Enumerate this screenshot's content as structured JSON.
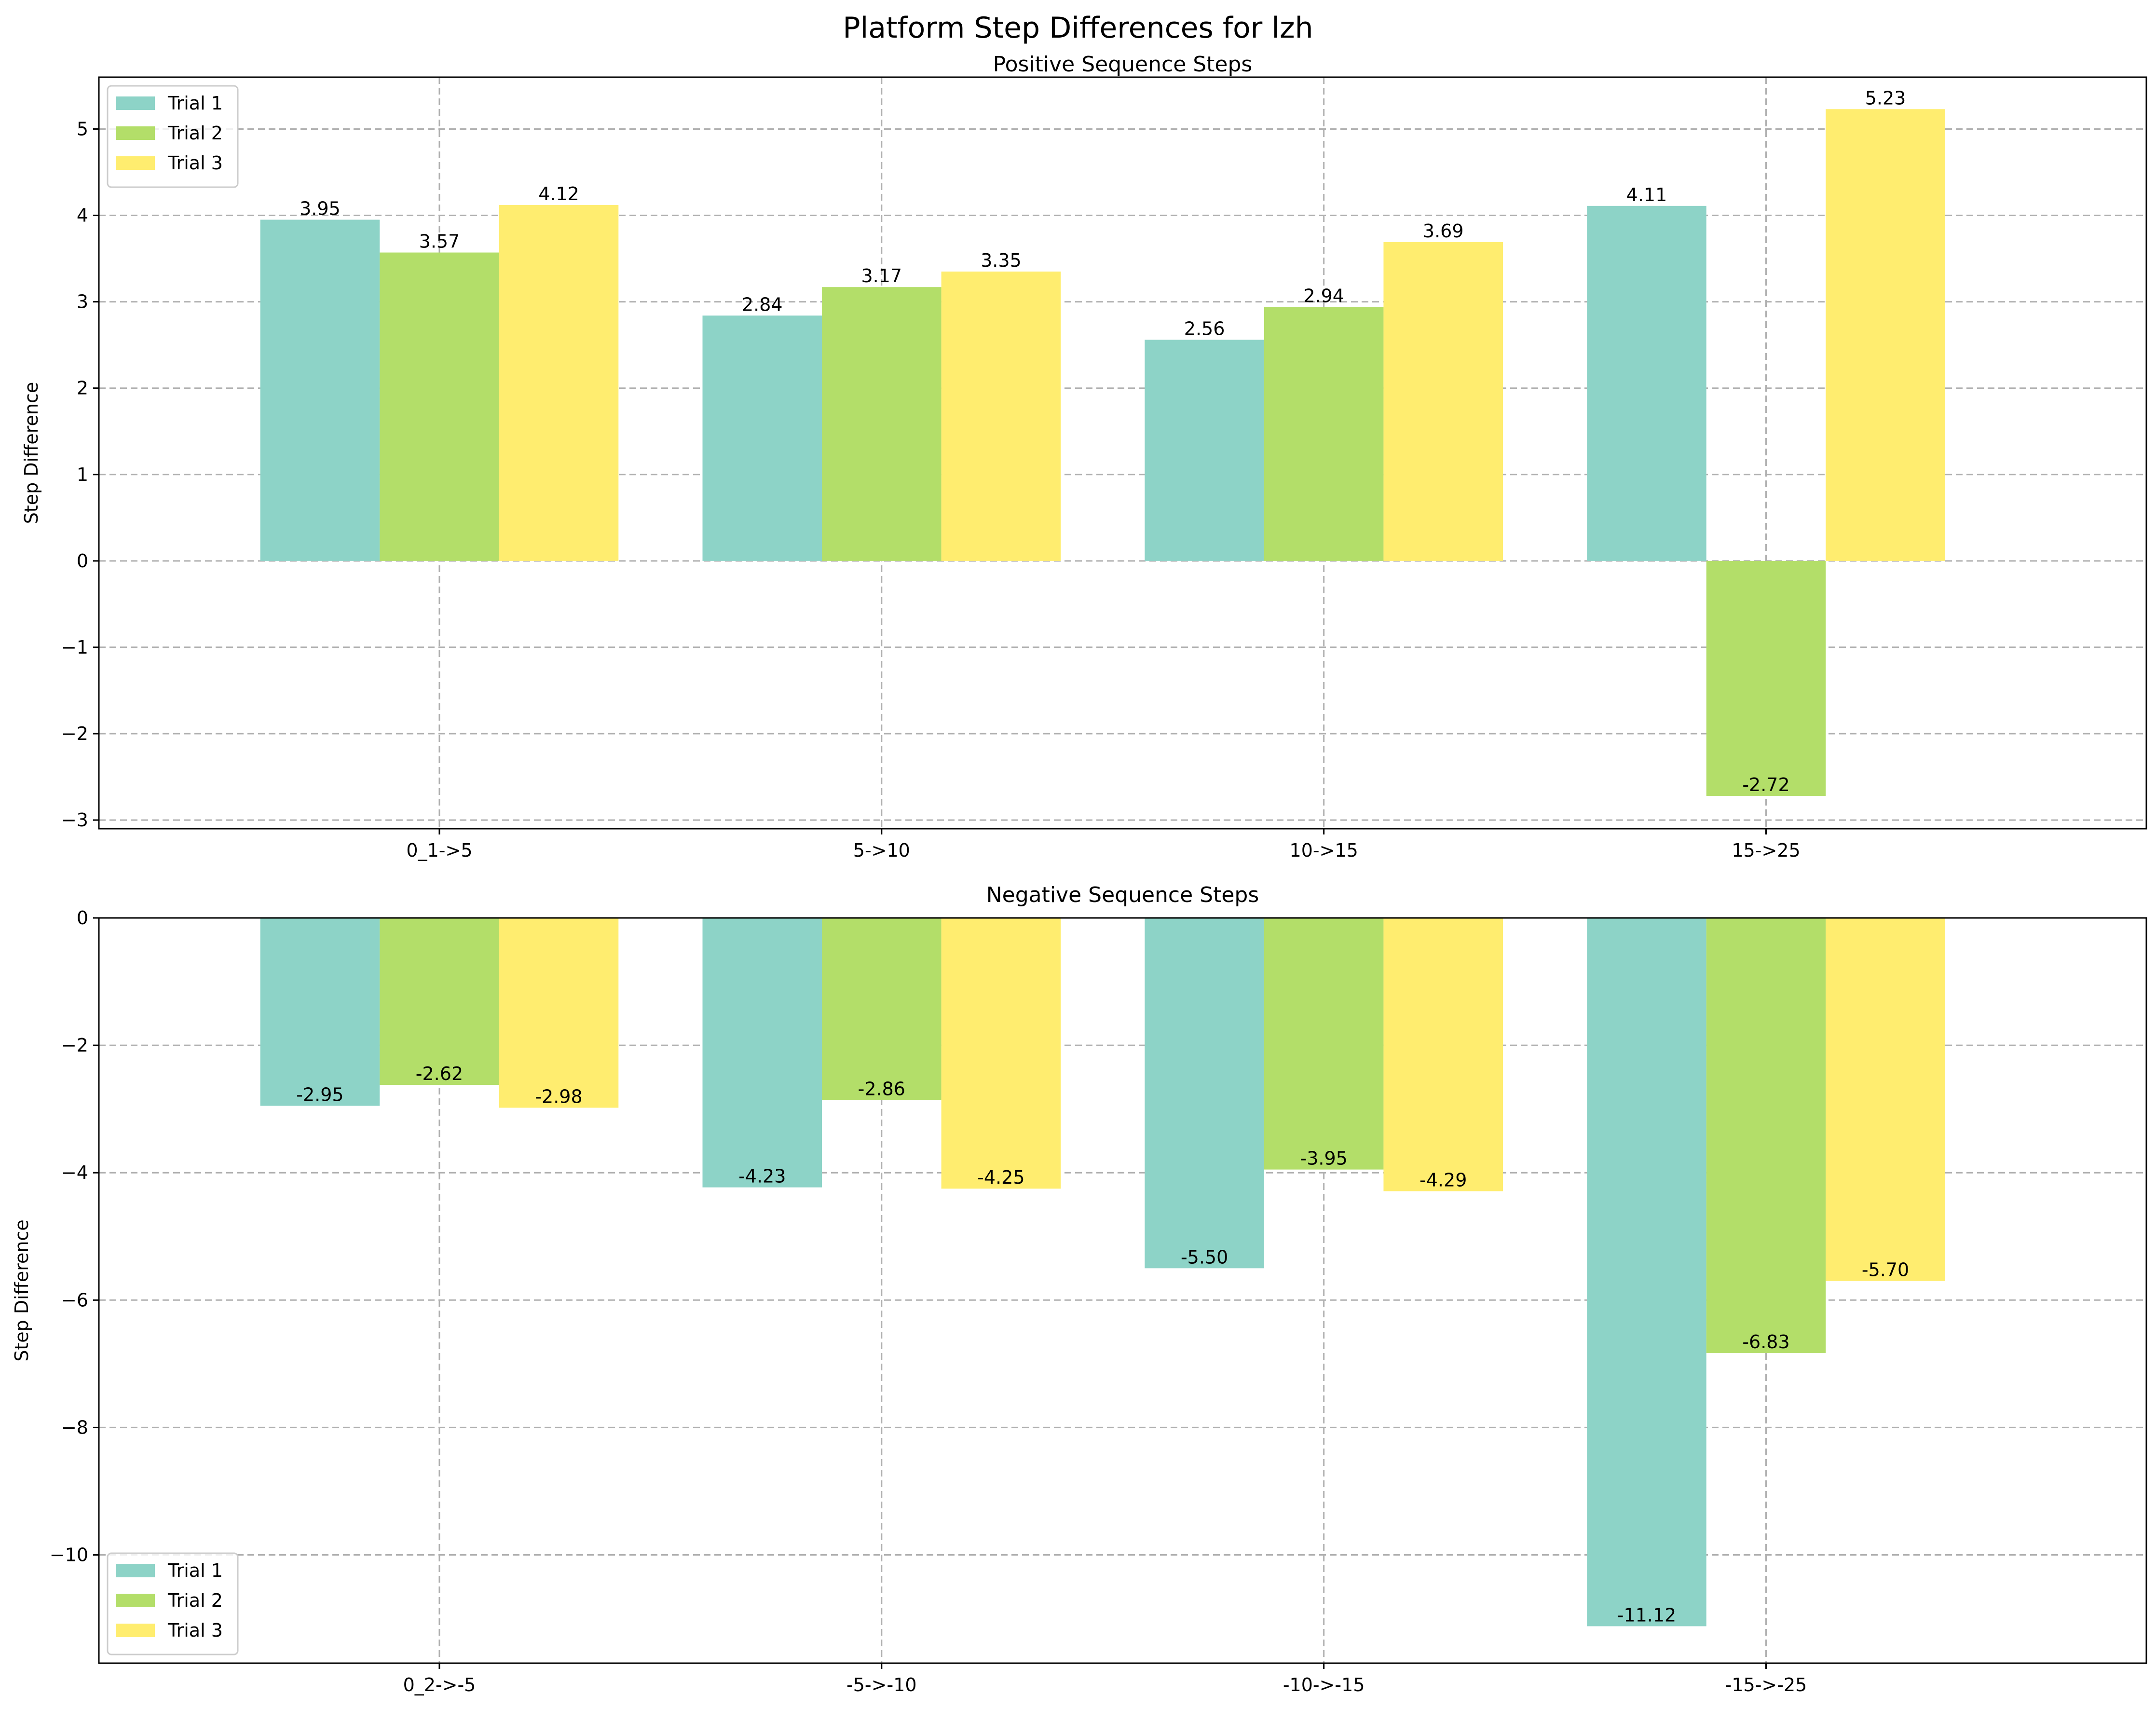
{
  "figure": {
    "title": "Platform Step Differences for lzh"
  },
  "colors": {
    "trial_1": "#8dd3c7",
    "trial_2": "#b3de69",
    "trial_3": "#ffed6f"
  },
  "chart_data": [
    {
      "type": "bar",
      "title": "Positive Sequence Steps",
      "xlabel": "",
      "ylabel": "Step Difference",
      "categories": [
        "0_1->5",
        "5->10",
        "10->15",
        "15->25"
      ],
      "series": [
        {
          "name": "Trial 1",
          "values": [
            3.95,
            2.84,
            2.56,
            4.11
          ],
          "labels": [
            "3.95",
            "2.84",
            "2.56",
            "4.11"
          ]
        },
        {
          "name": "Trial 2",
          "values": [
            3.57,
            3.17,
            2.94,
            -2.72
          ],
          "labels": [
            "3.57",
            "3.17",
            "2.94",
            "-2.72"
          ]
        },
        {
          "name": "Trial 3",
          "values": [
            4.12,
            3.35,
            3.69,
            5.23
          ],
          "labels": [
            "4.12",
            "3.35",
            "3.69",
            "5.23"
          ]
        }
      ],
      "yticks": [
        -3,
        -2,
        -1,
        0,
        1,
        2,
        3,
        4,
        5
      ],
      "ytick_labels": [
        "−3",
        "−2",
        "−1",
        "0",
        "1",
        "2",
        "3",
        "4",
        "5"
      ],
      "ylim": [
        -3.1,
        5.6
      ],
      "grid": true,
      "legend_position": "upper left"
    },
    {
      "type": "bar",
      "title": "Negative Sequence Steps",
      "xlabel": "",
      "ylabel": "Step Difference",
      "categories": [
        "0_2->-5",
        "-5->-10",
        "-10->-15",
        "-15->-25"
      ],
      "series": [
        {
          "name": "Trial 1",
          "values": [
            -2.95,
            -4.23,
            -5.5,
            -11.12
          ],
          "labels": [
            "-2.95",
            "-4.23",
            "-5.50",
            "-11.12"
          ]
        },
        {
          "name": "Trial 2",
          "values": [
            -2.62,
            -2.86,
            -3.95,
            -6.83
          ],
          "labels": [
            "-2.62",
            "-2.86",
            "-3.95",
            "-6.83"
          ]
        },
        {
          "name": "Trial 3",
          "values": [
            -2.98,
            -4.25,
            -4.29,
            -5.7
          ],
          "labels": [
            "-2.98",
            "-4.25",
            "-4.29",
            "-5.70"
          ]
        }
      ],
      "yticks": [
        -10,
        -8,
        -6,
        -4,
        -2,
        0
      ],
      "ytick_labels": [
        "−10",
        "−8",
        "−6",
        "−4",
        "−2",
        "0"
      ],
      "ylim": [
        -11.7,
        0
      ],
      "grid": true,
      "legend_position": "lower left"
    }
  ]
}
